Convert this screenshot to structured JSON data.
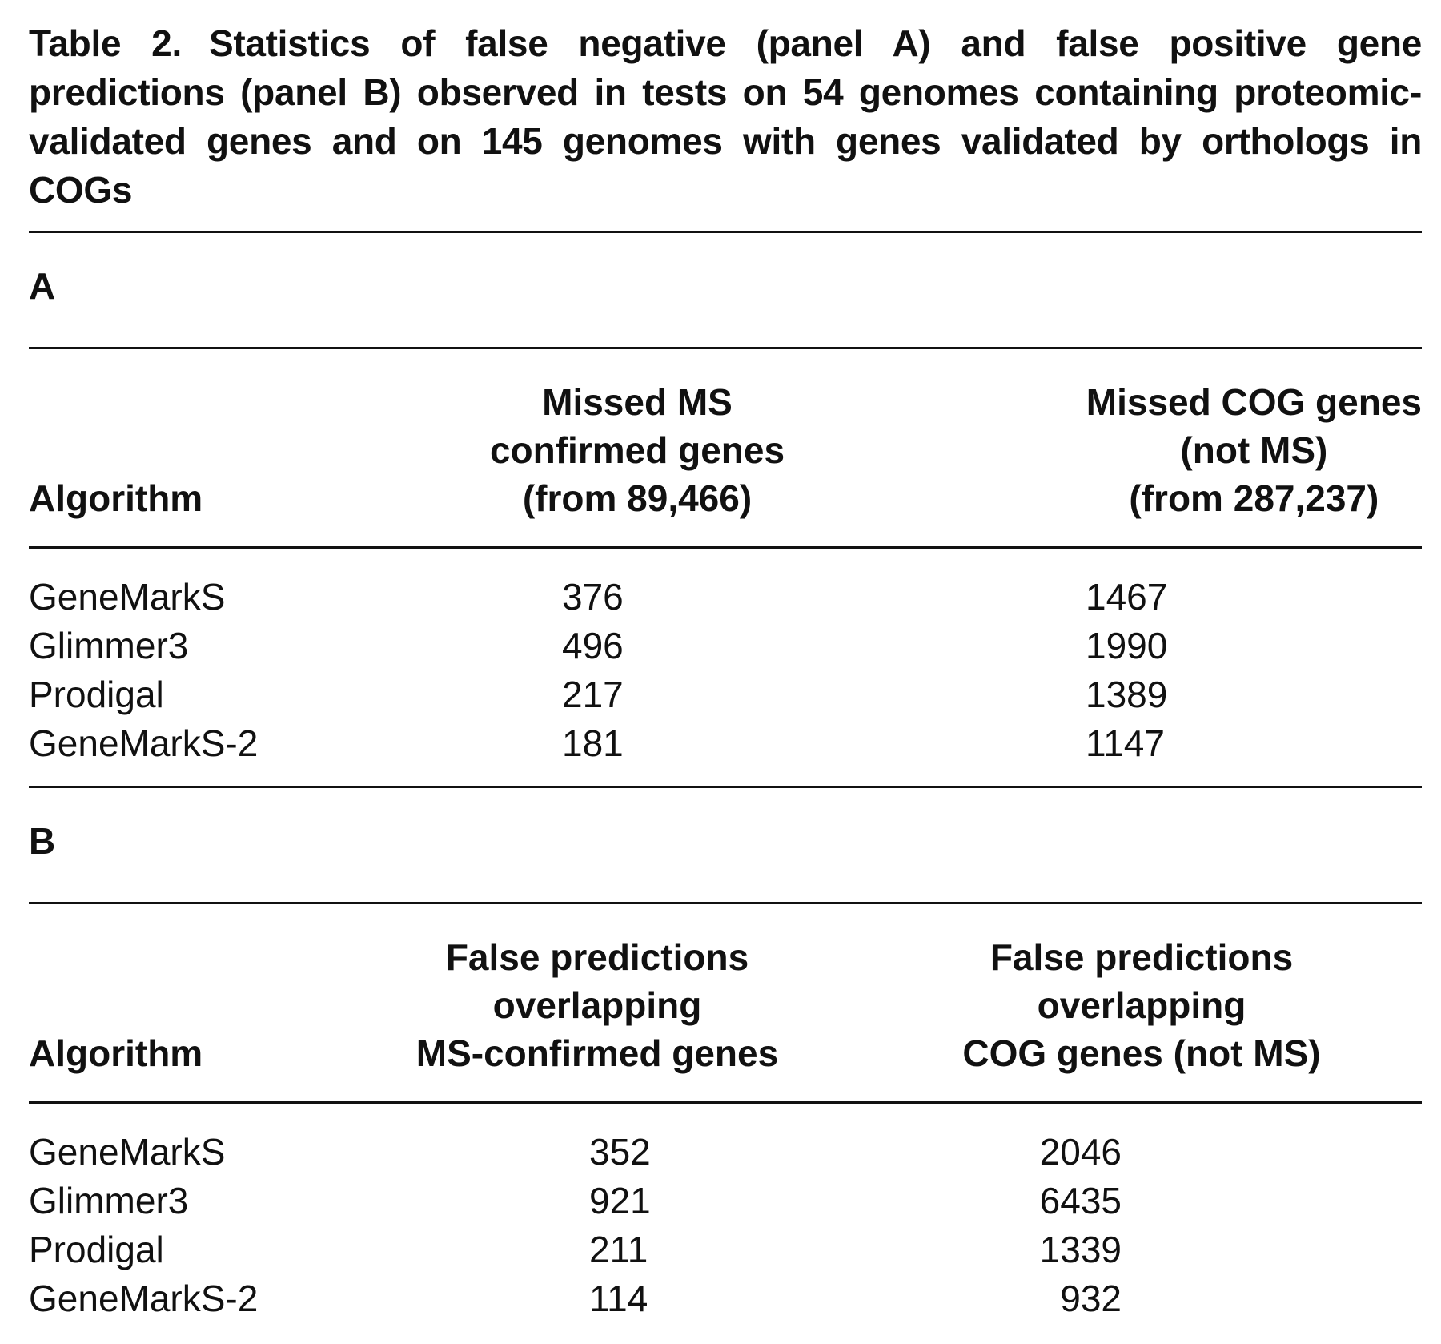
{
  "caption": {
    "label": "Table 2.",
    "text": "Statistics of false negative (panel A) and false positive gene predictions (panel B) observed in tests on 54 genomes containing proteomic-validated genes and on 145 genomes with genes validated by orthologs in COGs"
  },
  "panel_a": {
    "letter": "A",
    "headers": {
      "algorithm": "Algorithm",
      "col1": [
        "Missed MS",
        "confirmed genes",
        "(from 89,466)"
      ],
      "col2": [
        "Missed COG genes",
        "(not MS)",
        "(from 287,237)"
      ]
    },
    "rows": [
      {
        "algorithm": "GeneMarkS",
        "col1": "376",
        "col2": "1467"
      },
      {
        "algorithm": "Glimmer3",
        "col1": "496",
        "col2": "1990"
      },
      {
        "algorithm": "Prodigal",
        "col1": "217",
        "col2": "1389"
      },
      {
        "algorithm": "GeneMarkS-2",
        "col1": "181",
        "col2": "1147"
      }
    ]
  },
  "panel_b": {
    "letter": "B",
    "headers": {
      "algorithm": "Algorithm",
      "col1": [
        "False predictions",
        "overlapping",
        "MS-confirmed genes"
      ],
      "col2": [
        "False predictions",
        "overlapping",
        "COG genes (not MS)"
      ]
    },
    "rows": [
      {
        "algorithm": "GeneMarkS",
        "col1": "352",
        "col2": "2046"
      },
      {
        "algorithm": "Glimmer3",
        "col1": "921",
        "col2": "6435"
      },
      {
        "algorithm": "Prodigal",
        "col1": "211",
        "col2": "1339"
      },
      {
        "algorithm": "GeneMarkS-2",
        "col1": "114",
        "col2": "932"
      }
    ]
  }
}
